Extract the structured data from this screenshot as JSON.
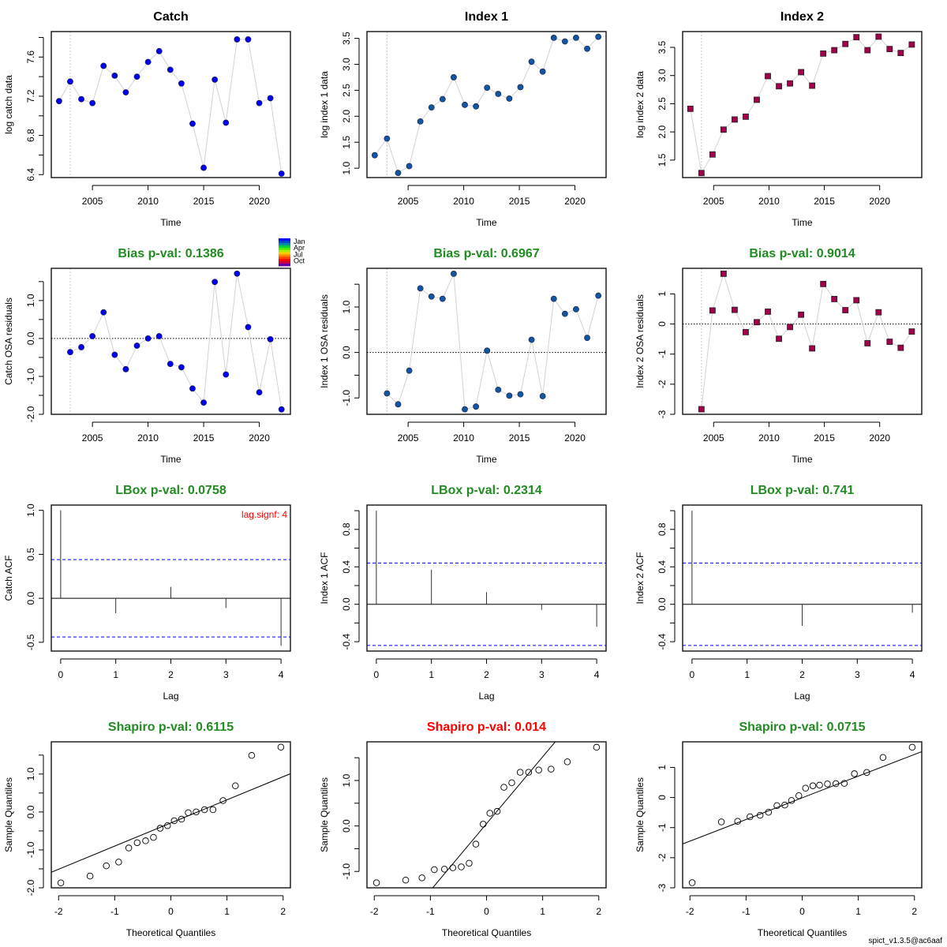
{
  "footer": "spict_v1.3.5@ac6aaf",
  "colors": {
    "catch_point": "#0000ee",
    "index1_point": "#1155a3",
    "index2_point": "#a0004a",
    "line": "#d3d3d3",
    "ok_title": "#228b22",
    "bad_title": "#ff0000",
    "ci_line": "#0000ff",
    "lag_signif": "#ff0000"
  },
  "month_legend": {
    "labels": [
      "Jan",
      "Apr",
      "Jul",
      "Oct"
    ],
    "colors": [
      "#0000ff",
      "#0044cc",
      "#0088aa",
      "#00cc44",
      "#44ee00",
      "#aaee00",
      "#ffcc00",
      "#ff8800",
      "#ff4400",
      "#ff0000",
      "#cc0044",
      "#6600aa"
    ]
  },
  "chart_data": [
    {
      "id": "catch-data",
      "type": "scatter",
      "title": "Catch",
      "title_color": "#000000",
      "xlabel": "Time",
      "ylabel": "log catch data",
      "xlim": [
        2001.3,
        2022.8
      ],
      "ylim": [
        6.37,
        7.86
      ],
      "xticks": [
        2005,
        2010,
        2015,
        2020
      ],
      "yticks": [
        6.4,
        6.6,
        6.8,
        7.0,
        7.2,
        7.4,
        7.6,
        7.8
      ],
      "ytick_labels": [
        "6.4",
        "",
        "6.8",
        "",
        "7.2",
        "",
        "7.6",
        ""
      ],
      "vline": 2003,
      "marker": "circle",
      "color_key": "catch_point",
      "x": [
        2002,
        2003,
        2004,
        2005,
        2006,
        2007,
        2008,
        2009,
        2010,
        2011,
        2012,
        2013,
        2014,
        2015,
        2016,
        2017,
        2018,
        2019,
        2020,
        2021,
        2022
      ],
      "y": [
        7.15,
        7.35,
        7.17,
        7.13,
        7.51,
        7.41,
        7.24,
        7.4,
        7.55,
        7.66,
        7.47,
        7.33,
        6.92,
        6.47,
        7.37,
        6.93,
        7.78,
        7.78,
        7.13,
        7.18,
        6.41
      ]
    },
    {
      "id": "index1-data",
      "type": "scatter",
      "title": "Index 1",
      "title_color": "#000000",
      "xlabel": "Time",
      "ylabel": "log index 1 data",
      "xlim": [
        2001.3,
        2022.8
      ],
      "ylim": [
        0.82,
        3.63
      ],
      "xticks": [
        2005,
        2010,
        2015,
        2020
      ],
      "yticks": [
        1.0,
        1.5,
        2.0,
        2.5,
        3.0,
        3.5
      ],
      "ytick_labels": [
        "1.0",
        "1.5",
        "2.0",
        "2.5",
        "3.0",
        "3.5"
      ],
      "vline": 2003.1,
      "marker": "circle",
      "color_key": "index1_point",
      "x": [
        2002,
        2003.1,
        2004.1,
        2005.1,
        2006.1,
        2007.1,
        2008.1,
        2009.1,
        2010.1,
        2011.1,
        2012.1,
        2013.1,
        2014.1,
        2015.1,
        2016.1,
        2017.1,
        2018.1,
        2019.1,
        2020.1,
        2021.1,
        2022.1
      ],
      "y": [
        1.25,
        1.57,
        0.91,
        1.04,
        1.9,
        2.17,
        2.33,
        2.75,
        2.22,
        2.19,
        2.55,
        2.43,
        2.34,
        2.56,
        3.05,
        2.86,
        3.51,
        3.44,
        3.51,
        3.3,
        3.53
      ]
    },
    {
      "id": "index2-data",
      "type": "scatter",
      "title": "Index 2",
      "title_color": "#000000",
      "xlabel": "Time",
      "ylabel": "log index 2 data",
      "xlim": [
        2002.2,
        2023.8
      ],
      "ylim": [
        1.19,
        3.78
      ],
      "xticks": [
        2005,
        2010,
        2015,
        2020
      ],
      "yticks": [
        1.5,
        2.0,
        2.5,
        3.0,
        3.5
      ],
      "ytick_labels": [
        "1.5",
        "2.0",
        "2.5",
        "3.0",
        "3.5"
      ],
      "vline": 2003.9,
      "marker": "square",
      "color_key": "index2_point",
      "x": [
        2002.9,
        2003.9,
        2004.9,
        2005.9,
        2006.9,
        2007.9,
        2008.9,
        2009.9,
        2010.9,
        2011.9,
        2012.9,
        2013.9,
        2014.9,
        2015.9,
        2016.9,
        2017.9,
        2018.9,
        2019.9,
        2020.9,
        2021.9,
        2022.9
      ],
      "y": [
        2.41,
        1.27,
        1.6,
        2.04,
        2.22,
        2.27,
        2.57,
        2.99,
        2.81,
        2.86,
        3.06,
        2.82,
        3.39,
        3.45,
        3.56,
        3.68,
        3.45,
        3.69,
        3.47,
        3.4,
        3.55
      ]
    },
    {
      "id": "catch-residuals",
      "type": "scatter",
      "title": "Bias p-val: 0.1386",
      "title_color_key": "ok_title",
      "xlabel": "Time",
      "ylabel": "Catch OSA residuals",
      "xlim": [
        2001.3,
        2022.8
      ],
      "ylim": [
        -2.0,
        1.85
      ],
      "xticks": [
        2005,
        2010,
        2015,
        2020
      ],
      "yticks": [
        -2.0,
        -1.5,
        -1.0,
        -0.5,
        0.0,
        0.5,
        1.0,
        1.5
      ],
      "ytick_labels": [
        "-2.0",
        "",
        "-1.0",
        "",
        "0.0",
        "",
        "1.0",
        ""
      ],
      "vline": 2003,
      "hline": 0,
      "marker": "circle",
      "color_key": "catch_point",
      "month_legend": true,
      "x": [
        2003,
        2004,
        2005,
        2006,
        2007,
        2008,
        2009,
        2010,
        2011,
        2012,
        2013,
        2014,
        2015,
        2016,
        2017,
        2018,
        2019,
        2020,
        2021,
        2022
      ],
      "y": [
        -0.36,
        -0.23,
        0.06,
        0.69,
        -0.43,
        -0.81,
        -0.19,
        0.0,
        0.06,
        -0.67,
        -0.76,
        -1.32,
        -1.69,
        1.49,
        -0.95,
        1.71,
        0.3,
        -1.42,
        -0.02,
        -1.87
      ]
    },
    {
      "id": "index1-residuals",
      "type": "scatter",
      "title": "Bias p-val: 0.6967",
      "title_color_key": "ok_title",
      "xlabel": "Time",
      "ylabel": "Index 1 OSA residuals",
      "xlim": [
        2001.3,
        2022.8
      ],
      "ylim": [
        -1.36,
        1.85
      ],
      "xticks": [
        2005,
        2010,
        2015,
        2020
      ],
      "yticks": [
        -1.0,
        -0.5,
        0.0,
        0.5,
        1.0,
        1.5
      ],
      "ytick_labels": [
        "-1.0",
        "",
        "0.0",
        "",
        "1.0",
        ""
      ],
      "vline": 2003.1,
      "hline": 0,
      "marker": "circle",
      "color_key": "index1_point",
      "x": [
        2003.1,
        2004.1,
        2005.1,
        2006.1,
        2007.1,
        2008.1,
        2009.1,
        2010.1,
        2011.1,
        2012.1,
        2013.1,
        2014.1,
        2015.1,
        2016.1,
        2017.1,
        2018.1,
        2019.1,
        2020.1,
        2021.1,
        2022.1
      ],
      "y": [
        -0.9,
        -1.14,
        -0.4,
        1.41,
        1.23,
        1.18,
        1.73,
        -1.25,
        -1.19,
        0.04,
        -0.82,
        -0.95,
        -0.92,
        0.28,
        -0.96,
        1.18,
        0.85,
        0.95,
        0.32,
        1.25
      ]
    },
    {
      "id": "index2-residuals",
      "type": "scatter",
      "title": "Bias p-val: 0.9014",
      "title_color_key": "ok_title",
      "xlabel": "Time",
      "ylabel": "Index 2 OSA residuals",
      "xlim": [
        2002.2,
        2023.8
      ],
      "ylim": [
        -3.0,
        1.85
      ],
      "xticks": [
        2005,
        2010,
        2015,
        2020
      ],
      "yticks": [
        -3,
        -2,
        -1,
        0,
        1
      ],
      "ytick_labels": [
        "-3",
        "-2",
        "-1",
        "0",
        "1"
      ],
      "vline": 2003.9,
      "hline": 0,
      "marker": "square",
      "color_key": "index2_point",
      "x": [
        2003.9,
        2004.9,
        2005.9,
        2006.9,
        2007.9,
        2008.9,
        2009.9,
        2010.9,
        2011.9,
        2012.9,
        2013.9,
        2014.9,
        2015.9,
        2016.9,
        2017.9,
        2018.9,
        2019.9,
        2020.9,
        2021.9,
        2022.9
      ],
      "y": [
        -2.83,
        0.45,
        1.67,
        0.47,
        -0.27,
        0.06,
        0.41,
        -0.49,
        -0.1,
        0.31,
        -0.81,
        1.33,
        0.83,
        0.46,
        0.79,
        -0.64,
        0.39,
        -0.59,
        -0.79,
        -0.25
      ]
    },
    {
      "id": "catch-acf",
      "type": "bar",
      "title": "LBox p-val: 0.0758",
      "title_color_key": "ok_title",
      "xlabel": "Lag",
      "ylabel": "Catch ACF",
      "xlim": [
        -0.17,
        4.17
      ],
      "ylim": [
        -0.6,
        1.06
      ],
      "xticks": [
        0,
        1,
        2,
        3,
        4
      ],
      "yticks": [
        -0.5,
        0.0,
        0.5,
        1.0
      ],
      "ytick_labels": [
        "-0.5",
        "0.0",
        "0.5",
        "1.0"
      ],
      "lags": [
        0,
        1,
        2,
        3,
        4
      ],
      "acf": [
        1.0,
        -0.17,
        0.13,
        -0.11,
        -0.54
      ],
      "ci": 0.44,
      "annotation": "lag.signf: 4"
    },
    {
      "id": "index1-acf",
      "type": "bar",
      "title": "LBox p-val: 0.2314",
      "title_color_key": "ok_title",
      "xlabel": "Lag",
      "ylabel": "Index 1 ACF",
      "xlim": [
        -0.17,
        4.17
      ],
      "ylim": [
        -0.5,
        1.06
      ],
      "xticks": [
        0,
        1,
        2,
        3,
        4
      ],
      "yticks": [
        -0.4,
        -0.2,
        0.0,
        0.2,
        0.4,
        0.6,
        0.8,
        1.0
      ],
      "ytick_labels": [
        "-0.4",
        "",
        "0.0",
        "",
        "0.4",
        "",
        "0.8",
        ""
      ],
      "lags": [
        0,
        1,
        2,
        3,
        4
      ],
      "acf": [
        1.0,
        0.37,
        0.13,
        -0.06,
        -0.24
      ],
      "ci": 0.44
    },
    {
      "id": "index2-acf",
      "type": "bar",
      "title": "LBox p-val: 0.741",
      "title_color_key": "ok_title",
      "xlabel": "Lag",
      "ylabel": "Index 2 ACF",
      "xlim": [
        -0.17,
        4.17
      ],
      "ylim": [
        -0.5,
        1.06
      ],
      "xticks": [
        0,
        1,
        2,
        3,
        4
      ],
      "yticks": [
        -0.4,
        -0.2,
        0.0,
        0.2,
        0.4,
        0.6,
        0.8,
        1.0
      ],
      "ytick_labels": [
        "-0.4",
        "",
        "0.0",
        "",
        "0.4",
        "",
        "0.8",
        ""
      ],
      "lags": [
        0,
        1,
        2,
        3,
        4
      ],
      "acf": [
        1.0,
        0.005,
        -0.23,
        0.005,
        -0.09
      ],
      "ci": 0.44
    },
    {
      "id": "catch-qq",
      "type": "scatter",
      "title": "Shapiro p-val: 0.6115",
      "title_color_key": "ok_title",
      "xlabel": "Theoretical Quantiles",
      "ylabel": "Sample Quantiles",
      "xlim": [
        -2.13,
        2.13
      ],
      "ylim": [
        -2.0,
        1.85
      ],
      "xticks": [
        -2,
        -1,
        0,
        1,
        2
      ],
      "yticks": [
        -2.0,
        -1.5,
        -1.0,
        -0.5,
        0.0,
        0.5,
        1.0,
        1.5
      ],
      "ytick_labels": [
        "-2.0",
        "",
        "-1.0",
        "",
        "0.0",
        "",
        "1.0",
        ""
      ],
      "marker": "open-circle",
      "x": [
        -1.96,
        -1.44,
        -1.15,
        -0.93,
        -0.75,
        -0.6,
        -0.45,
        -0.31,
        -0.19,
        -0.06,
        0.06,
        0.19,
        0.31,
        0.45,
        0.6,
        0.75,
        0.93,
        1.15,
        1.44,
        1.96
      ],
      "y": [
        -1.87,
        -1.69,
        -1.42,
        -1.32,
        -0.95,
        -0.81,
        -0.76,
        -0.67,
        -0.43,
        -0.36,
        -0.23,
        -0.19,
        -0.02,
        0.0,
        0.06,
        0.06,
        0.3,
        0.69,
        1.49,
        1.71
      ],
      "qqline": {
        "intercept": -0.29,
        "slope": 0.61
      }
    },
    {
      "id": "index1-qq",
      "type": "scatter",
      "title": "Shapiro p-val: 0.014",
      "title_color_key": "bad_title",
      "xlabel": "Theoretical Quantiles",
      "ylabel": "Sample Quantiles",
      "xlim": [
        -2.13,
        2.13
      ],
      "ylim": [
        -1.36,
        1.85
      ],
      "xticks": [
        -2,
        -1,
        0,
        1,
        2
      ],
      "yticks": [
        -1.0,
        -0.5,
        0.0,
        0.5,
        1.0,
        1.5
      ],
      "ytick_labels": [
        "-1.0",
        "",
        "0.0",
        "",
        "1.0",
        ""
      ],
      "marker": "open-circle",
      "x": [
        -1.96,
        -1.44,
        -1.15,
        -0.93,
        -0.75,
        -0.6,
        -0.45,
        -0.31,
        -0.19,
        -0.06,
        0.06,
        0.19,
        0.31,
        0.45,
        0.6,
        0.75,
        0.93,
        1.15,
        1.44,
        1.96
      ],
      "y": [
        -1.25,
        -1.19,
        -1.14,
        -0.96,
        -0.95,
        -0.92,
        -0.9,
        -0.82,
        -0.4,
        0.04,
        0.28,
        0.32,
        0.85,
        0.95,
        1.18,
        1.18,
        1.23,
        1.25,
        1.41,
        1.73
      ],
      "qqline": {
        "intercept": 0.05,
        "slope": 1.47
      }
    },
    {
      "id": "index2-qq",
      "type": "scatter",
      "title": "Shapiro p-val: 0.0715",
      "title_color_key": "ok_title",
      "xlabel": "Theoretical Quantiles",
      "ylabel": "Sample Quantiles",
      "xlim": [
        -2.13,
        2.13
      ],
      "ylim": [
        -3.0,
        1.85
      ],
      "xticks": [
        -2,
        -1,
        0,
        1,
        2
      ],
      "yticks": [
        -3,
        -2,
        -1,
        0,
        1
      ],
      "ytick_labels": [
        "-3",
        "-2",
        "-1",
        "0",
        "1"
      ],
      "marker": "open-circle",
      "x": [
        -1.96,
        -1.44,
        -1.15,
        -0.93,
        -0.75,
        -0.6,
        -0.45,
        -0.31,
        -0.19,
        -0.06,
        0.06,
        0.19,
        0.31,
        0.45,
        0.6,
        0.75,
        0.93,
        1.15,
        1.44,
        1.96
      ],
      "y": [
        -2.83,
        -0.81,
        -0.79,
        -0.64,
        -0.59,
        -0.49,
        -0.27,
        -0.25,
        -0.1,
        0.06,
        0.31,
        0.39,
        0.41,
        0.45,
        0.46,
        0.47,
        0.79,
        0.83,
        1.33,
        1.67
      ],
      "qqline": {
        "intercept": -0.01,
        "slope": 0.72
      }
    }
  ]
}
